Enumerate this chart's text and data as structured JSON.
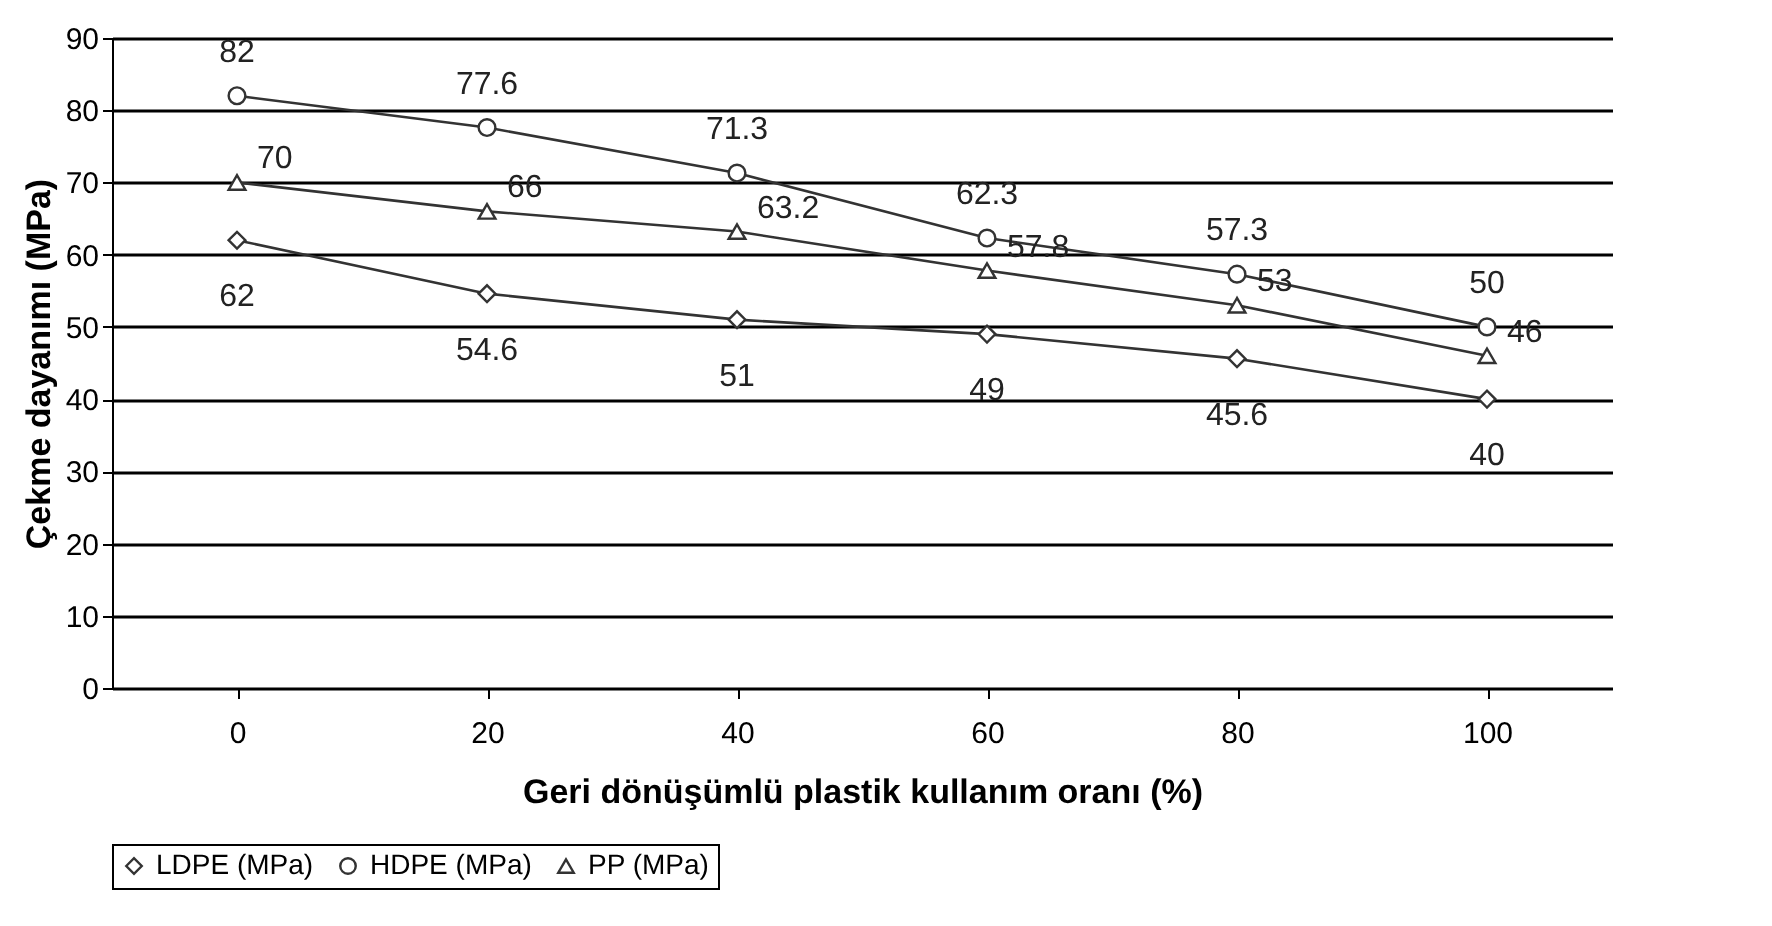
{
  "chart_data": {
    "type": "line",
    "xlabel": "Geri dönüşümlü plastik kullanım oranı (%)",
    "ylabel": "Çekme dayanımı (MPa)",
    "categories": [
      "0",
      "20",
      "40",
      "60",
      "80",
      "100"
    ],
    "series": [
      {
        "name": "LDPE (MPa)",
        "color": "#333333",
        "marker": "diamond",
        "values": [
          62,
          54.6,
          51,
          49,
          45.6,
          40
        ]
      },
      {
        "name": "HDPE (MPa)",
        "color": "#333333",
        "marker": "circle",
        "values": [
          82,
          77.6,
          71.3,
          62.3,
          57.3,
          50
        ]
      },
      {
        "name": "PP (MPa)",
        "color": "#333333",
        "marker": "triangle",
        "values": [
          70,
          66,
          63.2,
          57.8,
          53,
          46
        ]
      }
    ],
    "ylim": [
      0,
      90
    ],
    "yticks": [
      0,
      10,
      20,
      30,
      40,
      50,
      60,
      70,
      80,
      90
    ],
    "grid": "y",
    "legend": "bottom",
    "data_labels": true,
    "line_style": "solid"
  }
}
